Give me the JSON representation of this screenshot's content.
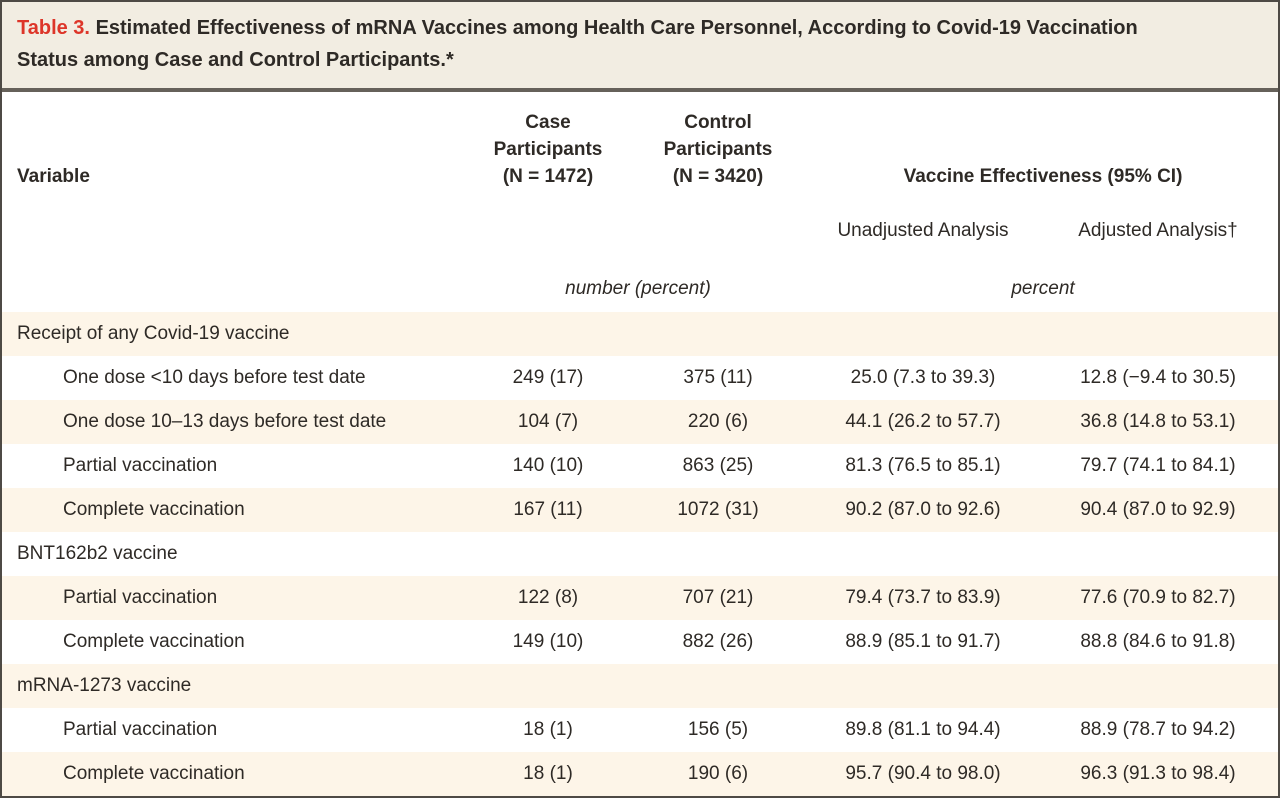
{
  "colors": {
    "table_number_red": "#dd3529",
    "title_background": "#f2ede2",
    "row_stripe_beige": "#fdf5e8",
    "border_gray": "#4e4a45",
    "text_charcoal": "#2e2a26"
  },
  "table": {
    "title_label": "Table 3.",
    "title_line1": "Estimated Effectiveness of mRNA Vaccines among Health Care Personnel, According to Covid-19 Vaccination",
    "title_line2": "Status among Case and Control Participants.*",
    "header": {
      "variable": "Variable",
      "case_lines": [
        "Case",
        "Participants",
        "(N = 1472)"
      ],
      "control_lines": [
        "Control",
        "Participants",
        "(N = 3420)"
      ],
      "effectiveness": "Vaccine Effectiveness (95% CI)",
      "unadjusted": "Unadjusted Analysis",
      "adjusted": "Adjusted Analysis†",
      "units_participants": "number (percent)",
      "units_effectiveness": "percent"
    },
    "rows": [
      {
        "variable": "Receipt of any Covid-19 vaccine"
      },
      {
        "variable": "One dose <10 days before test date",
        "case": "249 (17)",
        "control": "375 (11)",
        "unadjusted": "25.0 (7.3 to 39.3)",
        "adjusted": "12.8 (−9.4 to 30.5)"
      },
      {
        "variable": "One dose 10–13 days before test date",
        "case": "104 (7)",
        "control": "220 (6)",
        "unadjusted": "44.1 (26.2 to 57.7)",
        "adjusted": "36.8 (14.8 to 53.1)"
      },
      {
        "variable": "Partial vaccination",
        "case": "140 (10)",
        "control": "863 (25)",
        "unadjusted": "81.3 (76.5 to 85.1)",
        "adjusted": "79.7 (74.1 to 84.1)"
      },
      {
        "variable": "Complete vaccination",
        "case": "167 (11)",
        "control": "1072 (31)",
        "unadjusted": "90.2 (87.0 to 92.6)",
        "adjusted": "90.4 (87.0 to 92.9)"
      },
      {
        "variable": "BNT162b2 vaccine"
      },
      {
        "variable": "Partial vaccination",
        "case": "122 (8)",
        "control": "707 (21)",
        "unadjusted": "79.4 (73.7 to 83.9)",
        "adjusted": "77.6 (70.9 to 82.7)"
      },
      {
        "variable": "Complete vaccination",
        "case": "149 (10)",
        "control": "882 (26)",
        "unadjusted": "88.9 (85.1 to 91.7)",
        "adjusted": "88.8 (84.6 to 91.8)"
      },
      {
        "variable": "mRNA-1273 vaccine"
      },
      {
        "variable": "Partial vaccination",
        "case": "18 (1)",
        "control": "156 (5)",
        "unadjusted": "89.8 (81.1 to 94.4)",
        "adjusted": "88.9 (78.7 to 94.2)"
      },
      {
        "variable": "Complete vaccination",
        "case": "18 (1)",
        "control": "190 (6)",
        "unadjusted": "95.7 (90.4 to 98.0)",
        "adjusted": "96.3 (91.3 to 98.4)"
      }
    ]
  }
}
